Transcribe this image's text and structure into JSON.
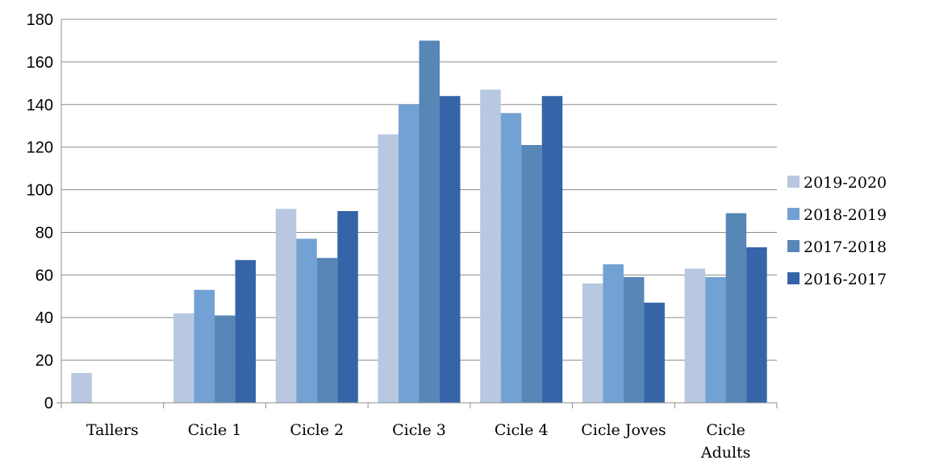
{
  "chart_data": {
    "type": "bar",
    "categories": [
      [
        "Tallers"
      ],
      [
        "Cicle 1"
      ],
      [
        "Cicle 2"
      ],
      [
        "Cicle 3"
      ],
      [
        "Cicle 4"
      ],
      [
        "Cicle Joves"
      ],
      [
        "Cicle",
        "Adults"
      ]
    ],
    "series": [
      {
        "name": "2019-2020",
        "color": "#b7c8e0",
        "values": [
          14,
          42,
          91,
          126,
          147,
          56,
          63
        ]
      },
      {
        "name": "2018-2019",
        "color": "#72a1d3",
        "values": [
          0,
          53,
          77,
          140,
          136,
          65,
          59
        ]
      },
      {
        "name": "2017-2018",
        "color": "#5886b6",
        "values": [
          0,
          41,
          68,
          170,
          121,
          59,
          89
        ]
      },
      {
        "name": "2016-2017",
        "color": "#3564a8",
        "values": [
          0,
          67,
          90,
          144,
          144,
          47,
          73
        ]
      }
    ],
    "ylim": [
      0,
      180
    ],
    "yticks": [
      "0",
      "20",
      "40",
      "60",
      "80",
      "100",
      "120",
      "140",
      "160",
      "180"
    ],
    "grid": true,
    "legend_position": "right"
  }
}
